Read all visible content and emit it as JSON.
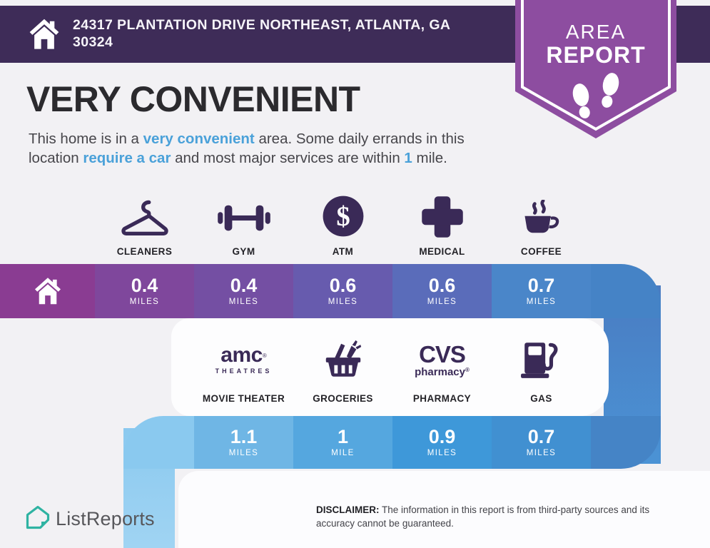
{
  "colors": {
    "page_bg": "#f2f1f4",
    "header_bg": "#3e2c58",
    "badge_purple": "#8d4da0",
    "icon_ink": "#3a2a57",
    "accent_blue": "#4aa1d9",
    "brand_teal": "#2fb3a2"
  },
  "header": {
    "address": "24317 PLANTATION DRIVE NORTHEAST, ATLANTA, GA 30324"
  },
  "badge": {
    "line1": "AREA",
    "line2": "REPORT"
  },
  "intro": {
    "title": "VERY CONVENIENT",
    "parts": [
      {
        "t": "This home is in a "
      },
      {
        "t": "very convenient",
        "em": true
      },
      {
        "t": " area. Some daily errands in this"
      },
      {
        "br": true
      },
      {
        "t": "location "
      },
      {
        "t": "require a car",
        "em": true
      },
      {
        "t": " and most major services are within "
      },
      {
        "t": "1",
        "em": true
      },
      {
        "t": " mile."
      }
    ]
  },
  "amenities_row1": {
    "home_segment_color": "#8a3c92",
    "tail_color": "#4583c6",
    "items": [
      {
        "label": "CLEANERS",
        "icon": "hanger-icon",
        "distance": "0.4",
        "unit": "MILES",
        "segment_color": "#7f479c"
      },
      {
        "label": "GYM",
        "icon": "dumbbell-icon",
        "distance": "0.4",
        "unit": "MILES",
        "segment_color": "#744fa3"
      },
      {
        "label": "ATM",
        "icon": "dollar-circle-icon",
        "distance": "0.6",
        "unit": "MILES",
        "segment_color": "#675bae"
      },
      {
        "label": "MEDICAL",
        "icon": "medical-cross-icon",
        "distance": "0.6",
        "unit": "MILES",
        "segment_color": "#5a6cba"
      },
      {
        "label": "COFFEE",
        "icon": "coffee-cup-icon",
        "distance": "0.7",
        "unit": "MILES",
        "segment_color": "#4a86c9"
      }
    ]
  },
  "amenities_row2": {
    "lead_color": "#8ac9ef",
    "tail_color": "#4584c6",
    "items": [
      {
        "label": "MOVIE THEATER",
        "icon": "amc-theatres-logo",
        "logo": {
          "main": "amc",
          "reg": "®",
          "sub": "THEATRES"
        },
        "distance": "1.1",
        "unit": "MILES",
        "segment_color": "#6fb6e5"
      },
      {
        "label": "GROCERIES",
        "icon": "grocery-basket-icon",
        "distance": "1",
        "unit": "MILE",
        "segment_color": "#55a7df"
      },
      {
        "label": "PHARMACY",
        "icon": "cvs-pharmacy-logo",
        "logo": {
          "main": "CVS",
          "sub": "pharmacy",
          "reg": "®"
        },
        "distance": "0.9",
        "unit": "MILES",
        "segment_color": "#3e98d9"
      },
      {
        "label": "GAS",
        "icon": "gas-pump-icon",
        "distance": "0.7",
        "unit": "MILES",
        "segment_color": "#4190d1"
      }
    ]
  },
  "footer": {
    "brand": "ListReports",
    "disclaimer_label": "DISCLAIMER:",
    "disclaimer_text": " The information in this report is from third-party sources and its accuracy cannot be guaranteed."
  }
}
